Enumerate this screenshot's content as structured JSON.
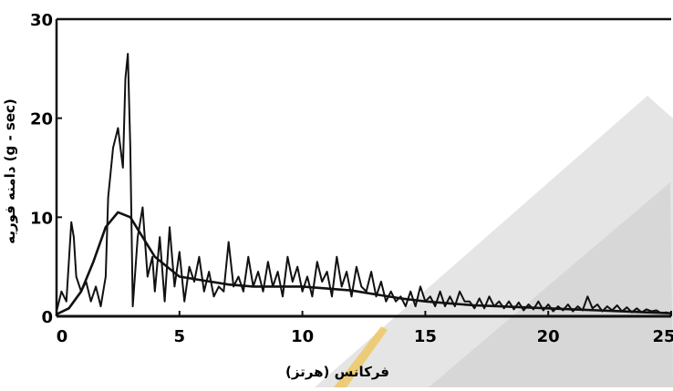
{
  "chart_data": {
    "type": "line",
    "title": "",
    "xlabel": "فرکانس (هرتز)",
    "ylabel": "دامنه فوریه (g - sec)",
    "xlim": [
      0,
      25
    ],
    "ylim": [
      0,
      30
    ],
    "x_ticks": [
      "0",
      "5",
      "10",
      "15",
      "20",
      "25"
    ],
    "y_ticks": [
      "0",
      "10",
      "20",
      "30"
    ],
    "grid": false,
    "legend": "none",
    "colors": {
      "line": "#111111",
      "axis": "#111111",
      "background": "#ffffff",
      "watermark": "#d9d9d9",
      "watermark_accent": "#f0c24a"
    },
    "series": [
      {
        "style": "raw-spectrum",
        "x": [
          0.0,
          0.2,
          0.4,
          0.6,
          0.7,
          0.8,
          1.0,
          1.2,
          1.4,
          1.6,
          1.8,
          2.0,
          2.1,
          2.3,
          2.5,
          2.7,
          2.8,
          2.9,
          3.0,
          3.1,
          3.3,
          3.5,
          3.7,
          3.9,
          4.0,
          4.2,
          4.4,
          4.6,
          4.8,
          5.0,
          5.2,
          5.4,
          5.6,
          5.8,
          6.0,
          6.2,
          6.4,
          6.6,
          6.8,
          7.0,
          7.2,
          7.4,
          7.6,
          7.8,
          8.0,
          8.2,
          8.4,
          8.6,
          8.8,
          9.0,
          9.2,
          9.4,
          9.6,
          9.8,
          10.0,
          10.2,
          10.4,
          10.6,
          10.8,
          11.0,
          11.2,
          11.4,
          11.6,
          11.8,
          12.0,
          12.2,
          12.4,
          12.6,
          12.8,
          13.0,
          13.2,
          13.4,
          13.6,
          13.8,
          14.0,
          14.2,
          14.4,
          14.6,
          14.8,
          15.0,
          15.2,
          15.4,
          15.6,
          15.8,
          16.0,
          16.2,
          16.4,
          16.6,
          16.8,
          17.0,
          17.2,
          17.4,
          17.6,
          17.8,
          18.0,
          18.2,
          18.4,
          18.6,
          18.8,
          19.0,
          19.2,
          19.4,
          19.6,
          19.8,
          20.0,
          20.2,
          20.4,
          20.6,
          20.8,
          21.0,
          21.2,
          21.4,
          21.6,
          21.8,
          22.0,
          22.2,
          22.4,
          22.6,
          22.8,
          23.0,
          23.2,
          23.4,
          23.6,
          23.8,
          24.0,
          24.2,
          24.4,
          24.6,
          24.8,
          25.0
        ],
        "values": [
          0.5,
          2.5,
          1.5,
          9.5,
          8.0,
          4.0,
          2.5,
          3.5,
          1.5,
          3.0,
          1.0,
          4.0,
          12.0,
          17.0,
          19.0,
          15.0,
          24.0,
          26.5,
          17.0,
          1.0,
          8.0,
          11.0,
          4.0,
          6.0,
          2.5,
          8.0,
          1.5,
          9.0,
          3.0,
          6.5,
          1.5,
          5.0,
          3.5,
          6.0,
          2.5,
          4.5,
          2.0,
          3.0,
          2.5,
          7.5,
          3.0,
          4.0,
          2.5,
          6.0,
          3.0,
          4.5,
          2.5,
          5.5,
          3.0,
          4.5,
          2.0,
          6.0,
          3.5,
          5.0,
          2.5,
          4.0,
          2.0,
          5.5,
          3.5,
          4.5,
          2.0,
          6.0,
          3.0,
          4.5,
          2.0,
          5.0,
          3.0,
          2.5,
          4.5,
          2.0,
          3.5,
          1.5,
          2.5,
          1.5,
          2.0,
          1.0,
          2.5,
          1.0,
          3.0,
          1.5,
          2.0,
          1.0,
          2.5,
          1.0,
          2.0,
          1.0,
          2.5,
          1.5,
          1.5,
          0.8,
          1.8,
          0.8,
          2.0,
          1.0,
          1.5,
          0.8,
          1.5,
          0.7,
          1.4,
          0.6,
          1.2,
          0.7,
          1.5,
          0.6,
          1.2,
          0.5,
          1.0,
          0.6,
          1.2,
          0.5,
          1.0,
          0.6,
          2.0,
          0.8,
          1.2,
          0.5,
          1.0,
          0.6,
          1.1,
          0.5,
          0.9,
          0.4,
          0.8,
          0.4,
          0.7,
          0.5,
          0.6,
          0.3,
          0.4,
          0.2
        ]
      },
      {
        "style": "smoothed-spectrum",
        "x": [
          0.0,
          0.5,
          1.0,
          1.5,
          2.0,
          2.5,
          3.0,
          3.5,
          4.0,
          4.5,
          5.0,
          6.0,
          7.0,
          8.0,
          9.0,
          10.0,
          11.0,
          12.0,
          13.0,
          14.0,
          15.0,
          16.0,
          17.0,
          18.0,
          19.0,
          20.0,
          21.0,
          22.0,
          23.0,
          24.0,
          25.0
        ],
        "values": [
          0.2,
          0.8,
          2.5,
          5.5,
          9.0,
          10.5,
          10.0,
          8.0,
          6.0,
          5.0,
          4.0,
          3.6,
          3.2,
          3.0,
          3.0,
          3.0,
          2.8,
          2.6,
          2.2,
          1.8,
          1.5,
          1.3,
          1.1,
          1.0,
          0.9,
          0.8,
          0.7,
          0.6,
          0.5,
          0.4,
          0.3
        ]
      }
    ]
  }
}
